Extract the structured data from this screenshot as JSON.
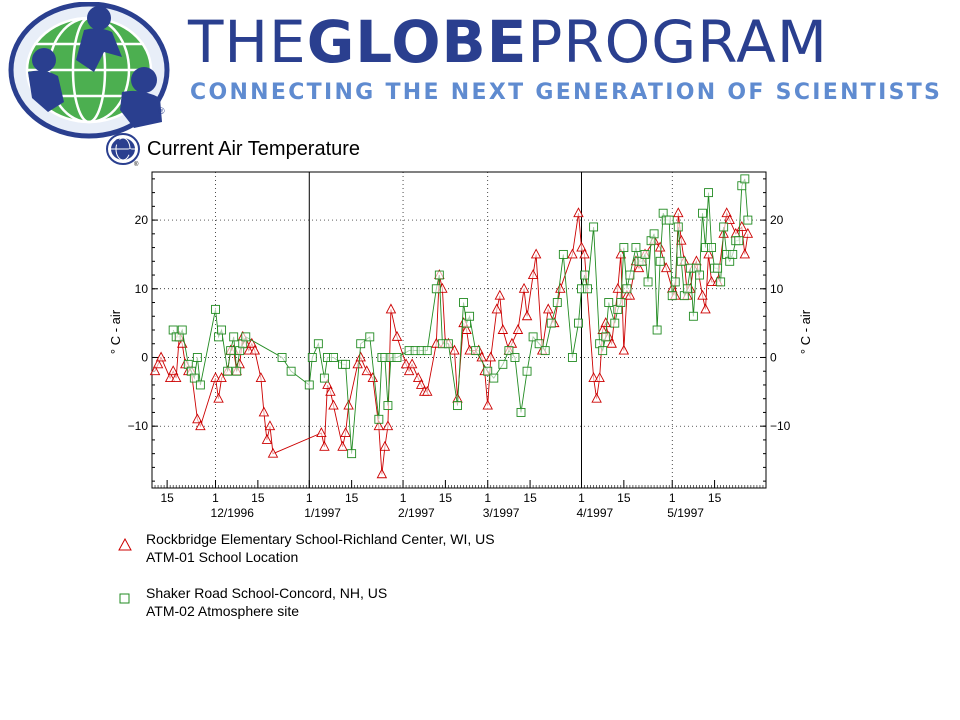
{
  "brand": {
    "title_part1": "THE",
    "title_part2": "GLOBE",
    "title_part3": "PROGRAM",
    "tagline": "CONNECTING THE NEXT GENERATION OF SCIENTISTS",
    "primary_color": "#2a3f8f",
    "accent_color": "#5f8bd0",
    "globe_green": "#4caf50",
    "registered_mark": "®"
  },
  "chart_data": {
    "type": "line",
    "title": "Current Air Temperature",
    "ylabel_left": "° C - air",
    "ylabel_right": "° C - air",
    "ylim": [
      -19,
      27
    ],
    "xlim": [
      "1996-11-10",
      "1997-06-01"
    ],
    "y_ticks": [
      -10,
      0,
      10,
      20
    ],
    "y_tick_labels": [
      "−10",
      "0",
      "10",
      "20"
    ],
    "x_tick_labels": [
      {
        "date": "1996-11-15",
        "label": "15"
      },
      {
        "date": "1996-12-01",
        "label": "1"
      },
      {
        "date": "1996-12-15",
        "label": "15"
      },
      {
        "date": "1997-01-01",
        "label": "1"
      },
      {
        "date": "1997-01-15",
        "label": "15"
      },
      {
        "date": "1997-02-01",
        "label": "1"
      },
      {
        "date": "1997-02-15",
        "label": "15"
      },
      {
        "date": "1997-03-01",
        "label": "1"
      },
      {
        "date": "1997-03-15",
        "label": "15"
      },
      {
        "date": "1997-04-01",
        "label": "1"
      },
      {
        "date": "1997-04-15",
        "label": "15"
      },
      {
        "date": "1997-05-01",
        "label": "1"
      },
      {
        "date": "1997-05-15",
        "label": "15"
      }
    ],
    "month_labels": [
      {
        "date": "1996-12-01",
        "label": "12/1996"
      },
      {
        "date": "1997-01-01",
        "label": "1/1997"
      },
      {
        "date": "1997-02-01",
        "label": "2/1997"
      },
      {
        "date": "1997-03-01",
        "label": "3/1997"
      },
      {
        "date": "1997-04-01",
        "label": "4/1997"
      },
      {
        "date": "1997-05-01",
        "label": "5/1997"
      }
    ],
    "solid_vlines": [
      "1997-01-01",
      "1997-04-01"
    ],
    "dotted_vlines": [
      "1996-12-01",
      "1997-02-01",
      "1997-03-01",
      "1997-05-01"
    ],
    "grid": true,
    "series": [
      {
        "name": "Rockbridge Elementary School-Richland Center, WI, US",
        "site": "ATM-01 School Location",
        "marker": "triangle",
        "color": "#cc0000",
        "line_color": "#cc0000",
        "points": [
          [
            "1996-11-11",
            -2
          ],
          [
            "1996-11-12",
            -1
          ],
          [
            "1996-11-13",
            0
          ],
          [
            "1996-11-16",
            -3
          ],
          [
            "1996-11-17",
            -2
          ],
          [
            "1996-11-18",
            -3
          ],
          [
            "1996-11-19",
            3
          ],
          [
            "1996-11-20",
            2
          ],
          [
            "1996-11-21",
            -1
          ],
          [
            "1996-11-22",
            -2
          ],
          [
            "1996-11-23",
            -2
          ],
          [
            "1996-11-25",
            -9
          ],
          [
            "1996-11-26",
            -10
          ],
          [
            "1996-12-01",
            -3
          ],
          [
            "1996-12-02",
            -6
          ],
          [
            "1996-12-03",
            -3
          ],
          [
            "1996-12-05",
            -2
          ],
          [
            "1996-12-06",
            1
          ],
          [
            "1996-12-07",
            1
          ],
          [
            "1996-12-08",
            -2
          ],
          [
            "1996-12-09",
            -1
          ],
          [
            "1996-12-10",
            3
          ],
          [
            "1996-12-11",
            2
          ],
          [
            "1996-12-12",
            1
          ],
          [
            "1996-12-13",
            2
          ],
          [
            "1996-12-14",
            1
          ],
          [
            "1996-12-16",
            -3
          ],
          [
            "1996-12-17",
            -8
          ],
          [
            "1996-12-18",
            -12
          ],
          [
            "1996-12-19",
            -10
          ],
          [
            "1996-12-20",
            -14
          ],
          [
            "1997-01-05",
            -11
          ],
          [
            "1997-01-06",
            -13
          ],
          [
            "1997-01-07",
            -4
          ],
          [
            "1997-01-08",
            -5
          ],
          [
            "1997-01-09",
            -7
          ],
          [
            "1997-01-12",
            -13
          ],
          [
            "1997-01-13",
            -11
          ],
          [
            "1997-01-14",
            -7
          ],
          [
            "1997-01-17",
            -1
          ],
          [
            "1997-01-18",
            0
          ],
          [
            "1997-01-20",
            -2
          ],
          [
            "1997-01-22",
            -3
          ],
          [
            "1997-01-24",
            -10
          ],
          [
            "1997-01-25",
            -17
          ],
          [
            "1997-01-26",
            -13
          ],
          [
            "1997-01-27",
            -10
          ],
          [
            "1997-01-28",
            7
          ],
          [
            "1997-01-30",
            3
          ],
          [
            "1997-02-02",
            -1
          ],
          [
            "1997-02-03",
            -2
          ],
          [
            "1997-02-04",
            -1
          ],
          [
            "1997-02-06",
            -3
          ],
          [
            "1997-02-07",
            -4
          ],
          [
            "1997-02-08",
            -5
          ],
          [
            "1997-02-09",
            -5
          ],
          [
            "1997-02-12",
            2
          ],
          [
            "1997-02-13",
            12
          ],
          [
            "1997-02-14",
            10
          ],
          [
            "1997-02-15",
            2
          ],
          [
            "1997-02-16",
            2
          ],
          [
            "1997-02-18",
            1
          ],
          [
            "1997-02-19",
            -6
          ],
          [
            "1997-02-21",
            5
          ],
          [
            "1997-02-22",
            4
          ],
          [
            "1997-02-23",
            1
          ],
          [
            "1997-02-26",
            1
          ],
          [
            "1997-02-27",
            0
          ],
          [
            "1997-02-28",
            -2
          ],
          [
            "1997-03-01",
            -7
          ],
          [
            "1997-03-02",
            0
          ],
          [
            "1997-03-04",
            7
          ],
          [
            "1997-03-05",
            9
          ],
          [
            "1997-03-06",
            4
          ],
          [
            "1997-03-08",
            1
          ],
          [
            "1997-03-09",
            2
          ],
          [
            "1997-03-11",
            4
          ],
          [
            "1997-03-13",
            10
          ],
          [
            "1997-03-14",
            6
          ],
          [
            "1997-03-16",
            12
          ],
          [
            "1997-03-17",
            15
          ],
          [
            "1997-03-19",
            1
          ],
          [
            "1997-03-21",
            7
          ],
          [
            "1997-03-23",
            5
          ],
          [
            "1997-03-25",
            10
          ],
          [
            "1997-03-29",
            15
          ],
          [
            "1997-03-31",
            21
          ],
          [
            "1997-04-01",
            16
          ],
          [
            "1997-04-02",
            15
          ],
          [
            "1997-04-05",
            -3
          ],
          [
            "1997-04-06",
            -6
          ],
          [
            "1997-04-07",
            -3
          ],
          [
            "1997-04-08",
            4
          ],
          [
            "1997-04-09",
            5
          ],
          [
            "1997-04-10",
            3
          ],
          [
            "1997-04-11",
            2
          ],
          [
            "1997-04-13",
            10
          ],
          [
            "1997-04-14",
            15
          ],
          [
            "1997-04-15",
            1
          ],
          [
            "1997-04-16",
            9
          ],
          [
            "1997-04-17",
            9
          ],
          [
            "1997-04-19",
            14
          ],
          [
            "1997-04-20",
            13
          ],
          [
            "1997-04-21",
            14
          ],
          [
            "1997-04-22",
            15
          ],
          [
            "1997-04-25",
            17
          ],
          [
            "1997-04-27",
            16
          ],
          [
            "1997-04-29",
            13
          ],
          [
            "1997-05-01",
            10
          ],
          [
            "1997-05-02",
            9
          ],
          [
            "1997-05-03",
            21
          ],
          [
            "1997-05-04",
            17
          ],
          [
            "1997-05-05",
            14
          ],
          [
            "1997-05-06",
            9
          ],
          [
            "1997-05-07",
            10
          ],
          [
            "1997-05-08",
            13
          ],
          [
            "1997-05-09",
            14
          ],
          [
            "1997-05-11",
            9
          ],
          [
            "1997-05-12",
            7
          ],
          [
            "1997-05-13",
            15
          ],
          [
            "1997-05-14",
            11
          ],
          [
            "1997-05-16",
            11
          ],
          [
            "1997-05-18",
            18
          ],
          [
            "1997-05-19",
            21
          ],
          [
            "1997-05-20",
            20
          ],
          [
            "1997-05-22",
            18
          ],
          [
            "1997-05-24",
            19
          ],
          [
            "1997-05-25",
            15
          ],
          [
            "1997-05-26",
            18
          ]
        ]
      },
      {
        "name": "Shaker Road School-Concord, NH, US",
        "site": "ATM-02 Atmosphere site",
        "marker": "square",
        "color": "#228b22",
        "line_color": "#228b22",
        "points": [
          [
            "1996-11-17",
            4
          ],
          [
            "1996-11-18",
            3
          ],
          [
            "1996-11-19",
            3
          ],
          [
            "1996-11-20",
            4
          ],
          [
            "1996-11-22",
            -1
          ],
          [
            "1996-11-23",
            -2
          ],
          [
            "1996-11-24",
            -3
          ],
          [
            "1996-11-25",
            0
          ],
          [
            "1996-11-26",
            -4
          ],
          [
            "1996-12-01",
            7
          ],
          [
            "1996-12-02",
            3
          ],
          [
            "1996-12-03",
            4
          ],
          [
            "1996-12-05",
            -2
          ],
          [
            "1996-12-06",
            1
          ],
          [
            "1996-12-07",
            3
          ],
          [
            "1996-12-08",
            -2
          ],
          [
            "1996-12-09",
            1
          ],
          [
            "1996-12-10",
            2
          ],
          [
            "1996-12-11",
            3
          ],
          [
            "1996-12-23",
            0
          ],
          [
            "1996-12-26",
            -2
          ],
          [
            "1997-01-01",
            -4
          ],
          [
            "1997-01-02",
            0
          ],
          [
            "1997-01-04",
            2
          ],
          [
            "1997-01-06",
            -3
          ],
          [
            "1997-01-07",
            0
          ],
          [
            "1997-01-09",
            0
          ],
          [
            "1997-01-12",
            -1
          ],
          [
            "1997-01-13",
            -1
          ],
          [
            "1997-01-15",
            -14
          ],
          [
            "1997-01-18",
            2
          ],
          [
            "1997-01-21",
            3
          ],
          [
            "1997-01-24",
            -9
          ],
          [
            "1997-01-25",
            0
          ],
          [
            "1997-01-26",
            0
          ],
          [
            "1997-01-27",
            -7
          ],
          [
            "1997-01-28",
            0
          ],
          [
            "1997-01-30",
            0
          ],
          [
            "1997-02-03",
            1
          ],
          [
            "1997-02-05",
            1
          ],
          [
            "1997-02-07",
            1
          ],
          [
            "1997-02-09",
            1
          ],
          [
            "1997-02-12",
            10
          ],
          [
            "1997-02-13",
            12
          ],
          [
            "1997-02-14",
            2
          ],
          [
            "1997-02-16",
            2
          ],
          [
            "1997-02-19",
            -7
          ],
          [
            "1997-02-21",
            8
          ],
          [
            "1997-02-22",
            5
          ],
          [
            "1997-02-23",
            6
          ],
          [
            "1997-02-25",
            1
          ],
          [
            "1997-03-01",
            -2
          ],
          [
            "1997-03-03",
            -3
          ],
          [
            "1997-03-06",
            -1
          ],
          [
            "1997-03-08",
            1
          ],
          [
            "1997-03-10",
            0
          ],
          [
            "1997-03-12",
            -8
          ],
          [
            "1997-03-14",
            -2
          ],
          [
            "1997-03-16",
            3
          ],
          [
            "1997-03-18",
            2
          ],
          [
            "1997-03-20",
            1
          ],
          [
            "1997-03-22",
            5
          ],
          [
            "1997-03-24",
            8
          ],
          [
            "1997-03-26",
            15
          ],
          [
            "1997-03-29",
            0
          ],
          [
            "1997-03-31",
            5
          ],
          [
            "1997-04-01",
            10
          ],
          [
            "1997-04-02",
            12
          ],
          [
            "1997-04-03",
            10
          ],
          [
            "1997-04-05",
            19
          ],
          [
            "1997-04-07",
            2
          ],
          [
            "1997-04-08",
            1
          ],
          [
            "1997-04-09",
            3
          ],
          [
            "1997-04-10",
            8
          ],
          [
            "1997-04-12",
            5
          ],
          [
            "1997-04-13",
            7
          ],
          [
            "1997-04-14",
            8
          ],
          [
            "1997-04-15",
            16
          ],
          [
            "1997-04-16",
            10
          ],
          [
            "1997-04-17",
            12
          ],
          [
            "1997-04-19",
            16
          ],
          [
            "1997-04-20",
            14
          ],
          [
            "1997-04-21",
            14
          ],
          [
            "1997-04-22",
            15
          ],
          [
            "1997-04-23",
            11
          ],
          [
            "1997-04-24",
            17
          ],
          [
            "1997-04-25",
            18
          ],
          [
            "1997-04-26",
            4
          ],
          [
            "1997-04-27",
            14
          ],
          [
            "1997-04-28",
            21
          ],
          [
            "1997-04-29",
            20
          ],
          [
            "1997-04-30",
            20
          ],
          [
            "1997-05-01",
            9
          ],
          [
            "1997-05-02",
            11
          ],
          [
            "1997-05-03",
            19
          ],
          [
            "1997-05-04",
            14
          ],
          [
            "1997-05-05",
            9
          ],
          [
            "1997-05-06",
            10
          ],
          [
            "1997-05-07",
            13
          ],
          [
            "1997-05-08",
            6
          ],
          [
            "1997-05-09",
            13
          ],
          [
            "1997-05-10",
            12
          ],
          [
            "1997-05-11",
            21
          ],
          [
            "1997-05-12",
            16
          ],
          [
            "1997-05-13",
            24
          ],
          [
            "1997-05-14",
            16
          ],
          [
            "1997-05-15",
            13
          ],
          [
            "1997-05-16",
            13
          ],
          [
            "1997-05-17",
            11
          ],
          [
            "1997-05-18",
            19
          ],
          [
            "1997-05-19",
            15
          ],
          [
            "1997-05-20",
            14
          ],
          [
            "1997-05-21",
            15
          ],
          [
            "1997-05-22",
            17
          ],
          [
            "1997-05-23",
            17
          ],
          [
            "1997-05-24",
            25
          ],
          [
            "1997-05-25",
            26
          ],
          [
            "1997-05-26",
            20
          ]
        ]
      }
    ]
  }
}
